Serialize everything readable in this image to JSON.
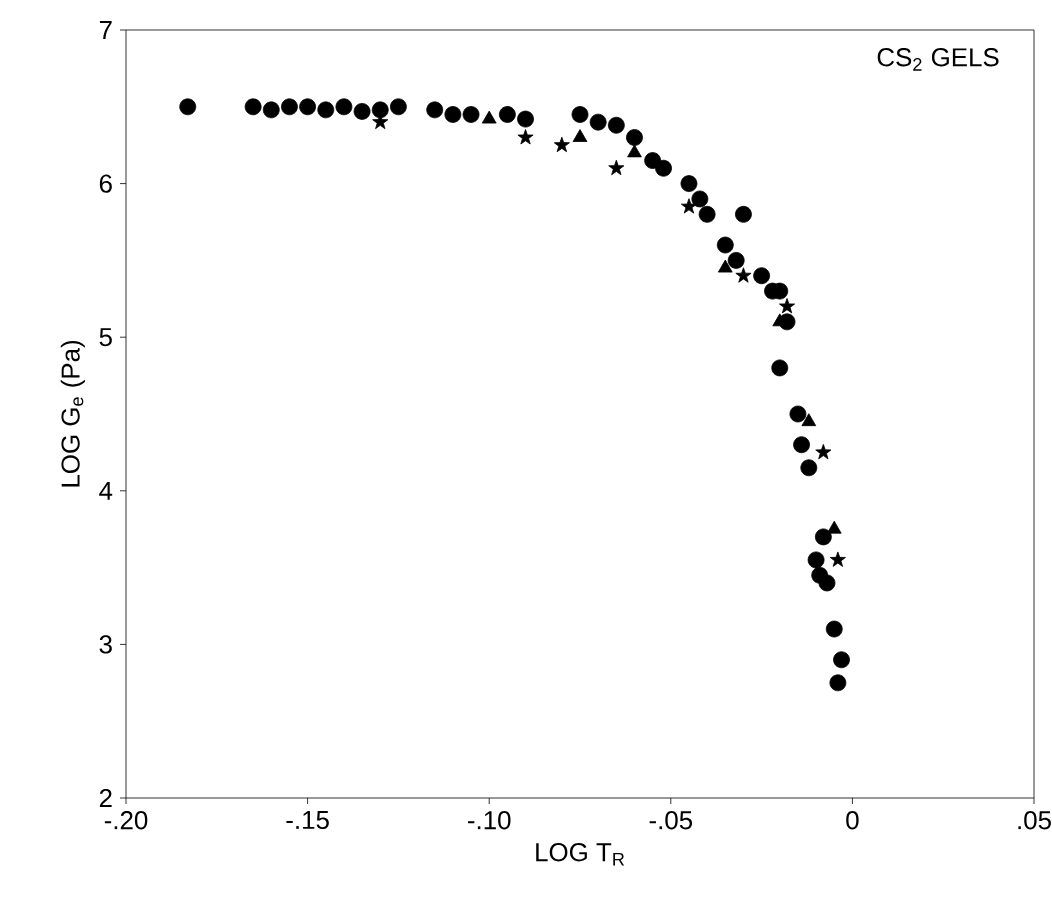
{
  "chart_data": {
    "type": "scatter",
    "title": "CS$_{2}$ GELS",
    "xlabel": "LOG T$_{R}$",
    "ylabel": "LOG G$_{e}$ (Pa)",
    "xlim": [
      -0.2,
      0.05
    ],
    "ylim": [
      2,
      7
    ],
    "xticks": [
      {
        "value": -0.2,
        "label": "-.20"
      },
      {
        "value": -0.15,
        "label": "-.15"
      },
      {
        "value": -0.1,
        "label": "-.10"
      },
      {
        "value": -0.05,
        "label": "-.05"
      },
      0,
      {
        "value": 0.05,
        "label": ".05"
      }
    ],
    "yticks": [
      2,
      3,
      4,
      5,
      6,
      7
    ],
    "series": [
      {
        "color": "#000000",
        "marker": "circle",
        "x": [
          -0.183,
          -0.165,
          -0.16,
          -0.155,
          -0.15,
          -0.145,
          -0.14,
          -0.135,
          -0.13,
          -0.125,
          -0.115,
          -0.11,
          -0.105,
          -0.095,
          -0.09,
          -0.075,
          -0.07,
          -0.065,
          -0.06,
          -0.055,
          -0.052,
          -0.045,
          -0.042,
          -0.04,
          -0.035,
          -0.032,
          -0.03,
          -0.025,
          -0.022,
          -0.02,
          -0.018,
          -0.02,
          -0.015,
          -0.014,
          -0.012,
          -0.008,
          -0.01,
          -0.009,
          -0.007,
          -0.005,
          -0.003,
          -0.004
        ],
        "values": [
          6.5,
          6.5,
          6.48,
          6.5,
          6.5,
          6.48,
          6.5,
          6.47,
          6.48,
          6.5,
          6.48,
          6.45,
          6.45,
          6.45,
          6.42,
          6.45,
          6.4,
          6.38,
          6.3,
          6.15,
          6.1,
          6.0,
          5.9,
          5.8,
          5.6,
          5.5,
          5.8,
          5.4,
          5.3,
          5.3,
          5.1,
          4.8,
          4.5,
          4.3,
          4.15,
          3.7,
          3.55,
          3.45,
          3.4,
          3.1,
          2.9,
          2.75
        ]
      },
      {
        "color": "#000000",
        "marker": "triangle",
        "x": [
          -0.1,
          -0.075,
          -0.06,
          -0.035,
          -0.02,
          -0.012,
          -0.005
        ],
        "values": [
          6.42,
          6.3,
          6.2,
          5.45,
          5.1,
          4.45,
          3.75
        ]
      },
      {
        "color": "#000000",
        "marker": "star",
        "x": [
          -0.13,
          -0.09,
          -0.08,
          -0.065,
          -0.045,
          -0.03,
          -0.018,
          -0.008,
          -0.004
        ],
        "values": [
          6.4,
          6.3,
          6.25,
          6.1,
          5.85,
          5.4,
          5.2,
          4.25,
          3.55
        ]
      }
    ]
  }
}
